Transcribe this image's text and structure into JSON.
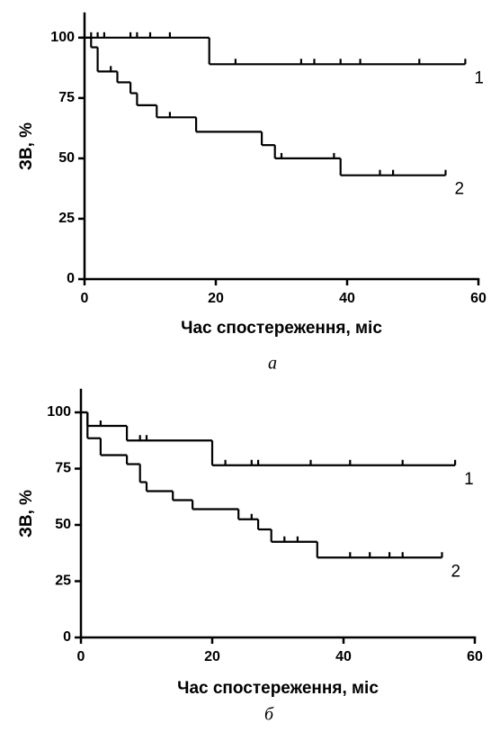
{
  "chart_data": [
    {
      "type": "step",
      "caption": "а",
      "ylabel": "ЗВ, %",
      "xlabel": "Час спостереження, міс",
      "xlim": [
        0,
        60
      ],
      "ylim": [
        0,
        110
      ],
      "xticks": [
        0,
        20,
        40,
        60
      ],
      "yticks": [
        0,
        25,
        50,
        75,
        100
      ],
      "series": [
        {
          "name": "1",
          "color": "#000000",
          "x": [
            0,
            19,
            58
          ],
          "values": [
            100,
            89,
            89
          ],
          "censored": [
            1,
            2,
            3,
            7,
            8,
            10,
            13,
            23,
            33,
            35,
            39,
            42,
            51
          ]
        },
        {
          "name": "2",
          "color": "#000000",
          "x": [
            0,
            1,
            2,
            5,
            7,
            8,
            11,
            17,
            27,
            29,
            39,
            55
          ],
          "values": [
            100,
            96,
            86,
            81.5,
            77,
            72,
            67,
            61,
            55.5,
            50,
            43,
            43
          ],
          "censored": [
            4,
            13,
            30,
            38,
            45,
            47
          ]
        }
      ]
    },
    {
      "type": "step",
      "caption": "б",
      "ylabel": "ЗВ, %",
      "xlabel": "Час спостереження, міс",
      "xlim": [
        0,
        60
      ],
      "ylim": [
        0,
        110
      ],
      "xticks": [
        0,
        20,
        40,
        60
      ],
      "yticks": [
        0,
        25,
        50,
        75,
        100
      ],
      "series": [
        {
          "name": "1",
          "color": "#000000",
          "x": [
            0,
            1,
            7,
            20,
            57
          ],
          "values": [
            100,
            94,
            87.5,
            76.5,
            76.5
          ],
          "censored": [
            3,
            9,
            10,
            22,
            26,
            27,
            35,
            41,
            49
          ]
        },
        {
          "name": "2",
          "color": "#000000",
          "x": [
            0,
            1,
            3,
            7,
            9,
            10,
            14,
            17,
            24,
            27,
            29,
            36,
            55
          ],
          "values": [
            100,
            88.5,
            81,
            77,
            69,
            65,
            61,
            57,
            52.5,
            48,
            42.5,
            35.5,
            35.5
          ],
          "censored": [
            26,
            31,
            33,
            41,
            44,
            47,
            49
          ]
        }
      ]
    }
  ]
}
